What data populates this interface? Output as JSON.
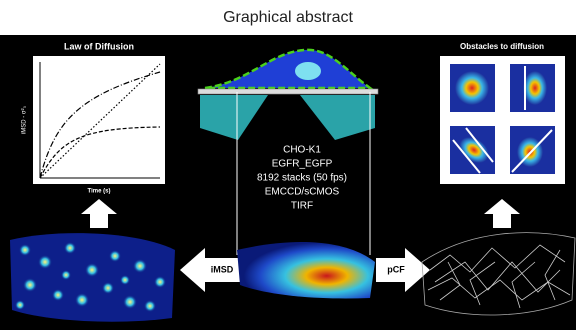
{
  "header": {
    "title": "Graphical abstract"
  },
  "left_panel": {
    "title": "Law of Diffusion",
    "y_label": "iMSD - σ²₀",
    "x_label": "Time (s)"
  },
  "right_panel": {
    "title": "Obstacles to diffusion"
  },
  "center": {
    "lines": [
      "CHO-K1",
      "EGFR_EGFP",
      "8192 stacks (50 fps)",
      "EMCCD/sCMOS",
      "TIRF"
    ]
  },
  "arrows": {
    "left": "iMSD",
    "right": "pCF"
  }
}
